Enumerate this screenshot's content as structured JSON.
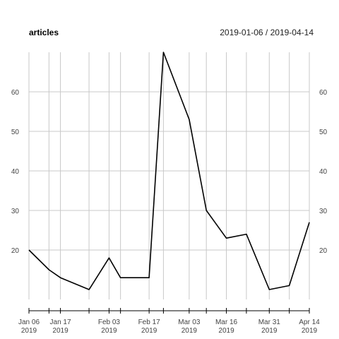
{
  "chart_data": {
    "type": "line",
    "title": "articles",
    "subtitle": "2019-01-06 / 2019-04-14",
    "xlabel": "",
    "ylabel": "",
    "x": [
      "2019-01-06",
      "2019-01-13",
      "2019-01-17",
      "2019-01-27",
      "2019-02-03",
      "2019-02-07",
      "2019-02-17",
      "2019-02-22",
      "2019-03-03",
      "2019-03-09",
      "2019-03-16",
      "2019-03-23",
      "2019-03-31",
      "2019-04-07",
      "2019-04-14"
    ],
    "series": [
      {
        "values": [
          20,
          15,
          13,
          10,
          18,
          13,
          13,
          70,
          53,
          30,
          23,
          24,
          10,
          11,
          27
        ]
      }
    ],
    "xlim": [
      "2019-01-06",
      "2019-04-14"
    ],
    "ylim": [
      7.5,
      70
    ],
    "y_ticks": [
      20,
      30,
      40,
      50,
      60
    ],
    "x_ticks": [
      {
        "date": "2019-01-06",
        "label1": "Jan 06",
        "label2": "2019"
      },
      {
        "date": "2019-01-17",
        "label1": "Jan 17",
        "label2": "2019"
      },
      {
        "date": "2019-02-03",
        "label1": "Feb 03",
        "label2": "2019"
      },
      {
        "date": "2019-02-17",
        "label1": "Feb 17",
        "label2": "2019"
      },
      {
        "date": "2019-03-03",
        "label1": "Mar 03",
        "label2": "2019"
      },
      {
        "date": "2019-03-16",
        "label1": "Mar 16",
        "label2": "2019"
      },
      {
        "date": "2019-03-31",
        "label1": "Mar 31",
        "label2": "2019"
      },
      {
        "date": "2019-04-14",
        "label1": "Apr 14",
        "label2": "2019"
      }
    ],
    "x_gridlines": [
      "2019-01-06",
      "2019-01-13",
      "2019-01-17",
      "2019-01-27",
      "2019-02-03",
      "2019-02-07",
      "2019-02-17",
      "2019-02-22",
      "2019-03-03",
      "2019-03-09",
      "2019-03-16",
      "2019-03-23",
      "2019-03-31",
      "2019-04-07",
      "2019-04-14"
    ],
    "grid": true,
    "legend": "none",
    "colors": {
      "line": "#000000",
      "grid": "#c8c8c8",
      "axis": "#000000"
    }
  }
}
